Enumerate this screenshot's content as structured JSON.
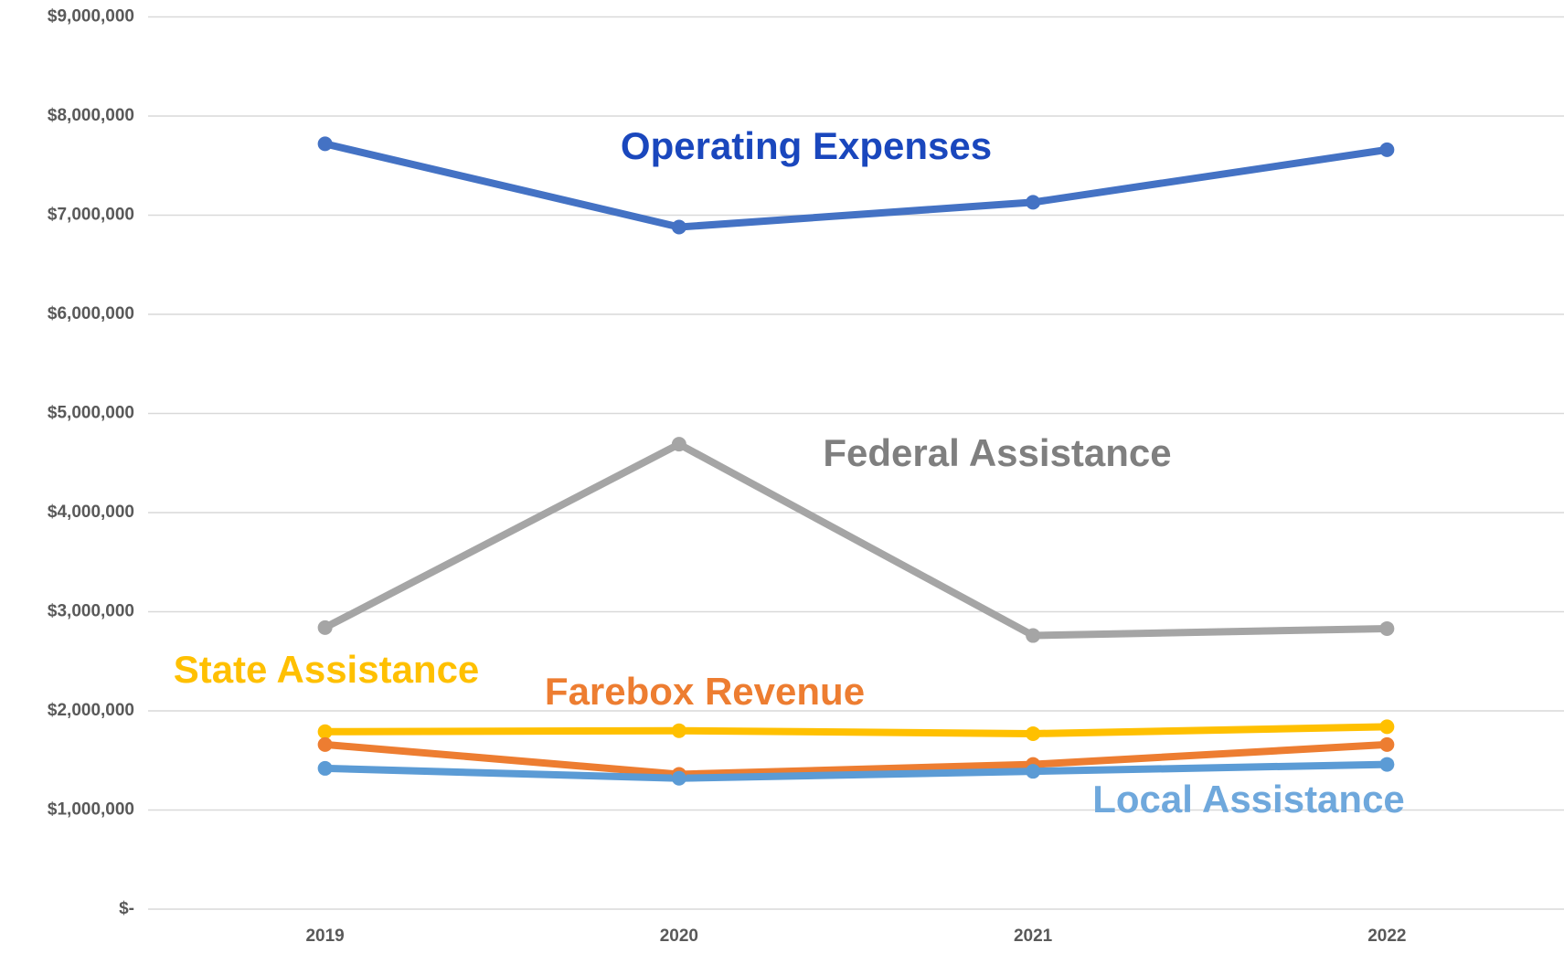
{
  "chart_data": {
    "type": "line",
    "categories": [
      "2019",
      "2020",
      "2021",
      "2022"
    ],
    "series": [
      {
        "name": "Operating Expenses",
        "color": "#4472c4",
        "label_color": "#1a47bd",
        "values": [
          7720000,
          6880000,
          7130000,
          7660000
        ]
      },
      {
        "name": "Federal Assistance",
        "color": "#a5a5a5",
        "label_color": "#7f7f7f",
        "values": [
          2840000,
          4690000,
          2760000,
          2830000
        ]
      },
      {
        "name": "State Assistance",
        "color": "#ffc000",
        "label_color": "#ffc000",
        "values": [
          1790000,
          1800000,
          1770000,
          1840000
        ]
      },
      {
        "name": "Farebox Revenue",
        "color": "#ed7d31",
        "label_color": "#ed7d31",
        "values": [
          1660000,
          1360000,
          1460000,
          1660000
        ]
      },
      {
        "name": "Local Assistance",
        "color": "#5b9bd5",
        "label_color": "#6fa8dc",
        "values": [
          1420000,
          1320000,
          1390000,
          1460000
        ]
      }
    ],
    "ylim": [
      0,
      9000000
    ],
    "yticks": [
      {
        "value": 0,
        "label": "$-"
      },
      {
        "value": 1000000,
        "label": "$1,000,000"
      },
      {
        "value": 2000000,
        "label": "$2,000,000"
      },
      {
        "value": 3000000,
        "label": "$3,000,000"
      },
      {
        "value": 4000000,
        "label": "$4,000,000"
      },
      {
        "value": 5000000,
        "label": "$5,000,000"
      },
      {
        "value": 6000000,
        "label": "$6,000,000"
      },
      {
        "value": 7000000,
        "label": "$7,000,000"
      },
      {
        "value": 8000000,
        "label": "$8,000,000"
      },
      {
        "value": 9000000,
        "label": "$9,000,000"
      }
    ],
    "grid": true
  }
}
